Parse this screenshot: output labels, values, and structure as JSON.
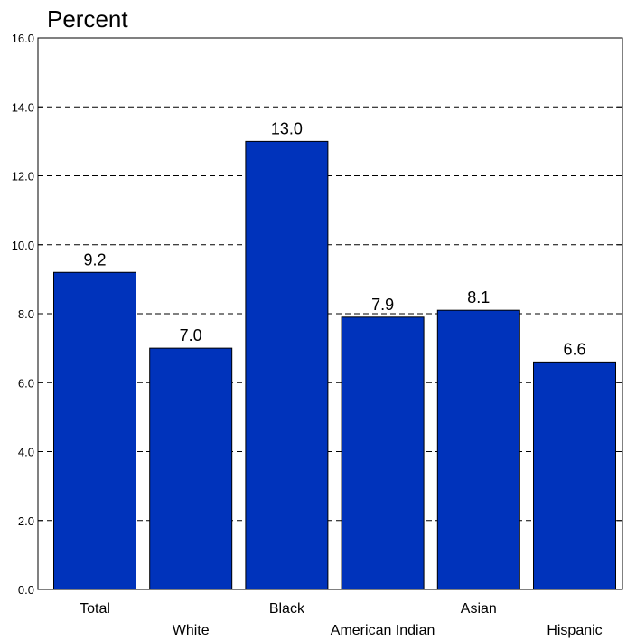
{
  "chart_data": {
    "type": "bar",
    "ylabel": "Percent",
    "categories": [
      "Total",
      "White",
      "Black",
      "American Indian",
      "Asian",
      "Hispanic"
    ],
    "values": [
      9.2,
      7.0,
      13.0,
      7.9,
      8.1,
      6.6
    ],
    "value_labels": [
      "9.2",
      "7.0",
      "13.0",
      "7.9",
      "8.1",
      "6.6"
    ],
    "ylim": [
      0,
      16
    ],
    "yticks": [
      0,
      2,
      4,
      6,
      8,
      10,
      12,
      14,
      16
    ],
    "ytick_labels": [
      "0.0",
      "2.0",
      "4.0",
      "6.0",
      "8.0",
      "10.0",
      "12.0",
      "14.0",
      "16.0"
    ],
    "grid": "dashed horizontal",
    "bar_color": "#0033bb"
  }
}
